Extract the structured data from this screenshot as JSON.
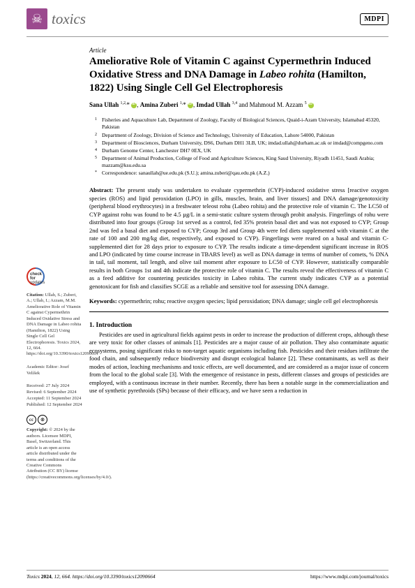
{
  "header": {
    "journal_name": "toxics",
    "publisher": "MDPI"
  },
  "article": {
    "type": "Article",
    "title_pre": "Ameliorative Role of Vitamin C against Cypermethrin Induced Oxidative Stress and DNA Damage in ",
    "title_species": "Labeo rohita",
    "title_post": " (Hamilton, 1822) Using Single Cell Gel Electrophoresis",
    "authors_html": "Sana Ullah",
    "a1_sup": "1,2,",
    "a2": "Amina Zuberi",
    "a2_sup": "1,",
    "a3": "Imdad Ullah",
    "a3_sup": "3,4",
    "a4": " and Mahmoud M. Azzam",
    "a4_sup": "5"
  },
  "affiliations": {
    "a1": "Fisheries and Aquaculture Lab, Department of Zoology, Faculty of Biological Sciences, Quaid-i-Azam University, Islamabad 45320, Pakistan",
    "a2": "Department of Zoology, Division of Science and Technology, University of Education, Lahore 54000, Pakistan",
    "a3": "Department of Biosciences, Durham University, DS6, Durham DH1 3LB, UK; imdad.ullah@durham.ac.uk or imdad@compgeno.com",
    "a4": "Durham Genome Center, Lanchester DH7 0EX, UK",
    "a5": "Department of Animal Production, College of Food and Agriculture Sciences, King Saud University, Riyadh 11451, Saudi Arabia; mazzam@ksu.edu.sa",
    "corr": "Correspondence: sanaullah@ue.edu.pk (S.U.); amina.zuberi@qau.edu.pk (A.Z.)"
  },
  "abstract": {
    "label": "Abstract:",
    "text": " The present study was undertaken to evaluate cypermethrin (CYP)-induced oxidative stress [reactive oxygen species (ROS) and lipid peroxidation (LPO) in gills, muscles, brain, and liver tissues] and DNA damage/genotoxicity (peripheral blood erythrocytes) in a freshwater teleost rohu (Labeo rohita) and the protective role of vitamin C. The LC50 of CYP against rohu was found to be 4.5 µg/L in a semi-static culture system through probit analysis. Fingerlings of rohu were distributed into four groups (Group 1st served as a control, fed 35% protein basal diet and was not exposed to CYP; Group 2nd was fed a basal diet and exposed to CYP; Group 3rd and Group 4th were fed diets supplemented with vitamin C at the rate of 100 and 200 mg/kg diet, respectively, and exposed to CYP). Fingerlings were reared on a basal and vitamin C-supplemented diet for 28 days prior to exposure to CYP. The results indicate a time-dependent significant increase in ROS and LPO (indicated by time course increase in TBARS level) as well as DNA damage in terms of number of comets, % DNA in tail, tail moment, tail length, and olive tail moment after exposure to LC50 of CYP. However, statistically comparable results in both Groups 1st and 4th indicate the protective role of vitamin C. The results reveal the effectiveness of vitamin C as a feed additive for countering pesticides toxicity in Labeo rohita. The current study indicates CYP as a potential genotoxicant for fish and classifies SCGE as a reliable and sensitive tool for assessing DNA damage."
  },
  "keywords": {
    "label": "Keywords:",
    "text": " cypermethrin; rohu; reactive oxygen species; lipid peroxidation; DNA damage; single cell gel electrophoresis"
  },
  "section1": {
    "heading": "1. Introduction",
    "p1": "Pesticides are used in agricultural fields against pests in order to increase the production of different crops, although these are very toxic for other classes of animals [1]. Pesticides are a major cause of air pollution. They also contaminate aquatic ecosystems, posing significant risks to non-target aquatic organisms including fish. Pesticides and their residues infiltrate the food chain, and subsequently reduce biodiversity and disrupt ecological balance [2]. These contaminants, as well as their modes of action, leaching mechanisms and toxic effects, are well documented, and are considered as a major issue of concern from the local to the global scale [3]. With the emergence of resistance in pests, different classes and groups of pesticides are employed, with a continuous increase in their number. Recently, there has been a notable surge in the commercialization and use of synthetic pyrethroids (SPs) because of their efficacy, and we have seen a reduction in"
  },
  "sidebar": {
    "check_l1": "check for",
    "check_l2": "updates",
    "citation_label": "Citation:",
    "citation_text": " Ullah, S.; Zuberi, A.; Ullah, I.; Azzam, M.M. Ameliorative Role of Vitamin C against Cypermethrin Induced Oxidative Stress and DNA Damage in Labeo rohita (Hamilton, 1822) Using Single Cell Gel Electrophoresis. Toxics 2024, 12, 664. https://doi.org/10.3390/toxics12090664",
    "editor": "Academic Editor: Josef Velíšek",
    "received": "Received: 27 July 2024",
    "revised": "Revised: 6 September 2024",
    "accepted": "Accepted: 11 September 2024",
    "published": "Published: 12 September 2024",
    "copyright_label": "Copyright:",
    "copyright_text": " © 2024 by the authors. Licensee MDPI, Basel, Switzerland. This article is an open access article distributed under the terms and conditions of the Creative Commons Attribution (CC BY) license (https://creativecommons.org/licenses/by/4.0/)."
  },
  "footer": {
    "left_ital": "Toxics ",
    "left_bold": "2024",
    "left_rest": ", 12, 664. https://doi.org/10.3390/toxics12090664",
    "right": "https://www.mdpi.com/journal/toxics"
  }
}
